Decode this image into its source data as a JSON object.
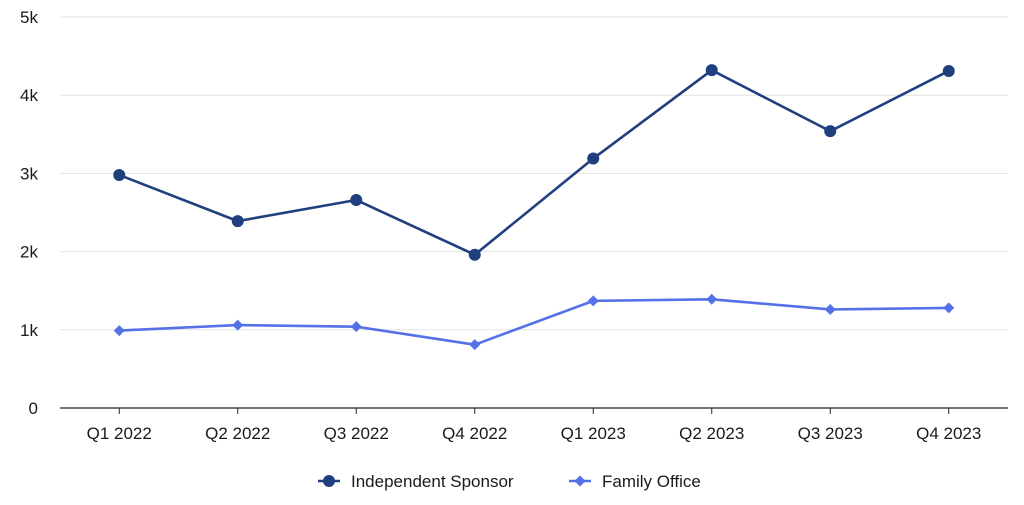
{
  "chart_data": {
    "type": "line",
    "categories": [
      "Q1 2022",
      "Q2 2022",
      "Q3 2022",
      "Q4 2022",
      "Q1 2023",
      "Q2 2023",
      "Q3 2023",
      "Q4 2023"
    ],
    "series": [
      {
        "name": "Independent Sponsor",
        "values": [
          2980,
          2390,
          2660,
          1960,
          3190,
          4320,
          3540,
          4310
        ],
        "color": "#1f3f7f",
        "marker": "circle"
      },
      {
        "name": "Family Office",
        "values": [
          990,
          1060,
          1040,
          810,
          1370,
          1390,
          1260,
          1280
        ],
        "color": "#5571e8",
        "marker": "diamond"
      }
    ],
    "ylim": [
      0,
      5000
    ],
    "yticks": [
      0,
      1000,
      2000,
      3000,
      4000,
      5000
    ],
    "ytick_labels": [
      "0",
      "1k",
      "2k",
      "3k",
      "4k",
      "5k"
    ],
    "grid": "horizontal",
    "legend_position": "bottom-center"
  }
}
